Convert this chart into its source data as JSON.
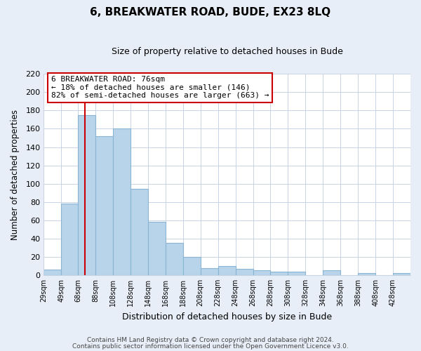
{
  "title": "6, BREAKWATER ROAD, BUDE, EX23 8LQ",
  "subtitle": "Size of property relative to detached houses in Bude",
  "xlabel": "Distribution of detached houses by size in Bude",
  "ylabel": "Number of detached properties",
  "bar_color": "#b8d4ea",
  "bar_edge_color": "#8ab4d4",
  "grid_color": "#c8d4e4",
  "plot_bg_color": "#ffffff",
  "fig_bg_color": "#e8eef8",
  "annotation_box_color": "#ffffff",
  "annotation_border_color": "#cc0000",
  "marker_line_color": "#cc0000",
  "marker_value": 76,
  "annotation_title": "6 BREAKWATER ROAD: 76sqm",
  "annotation_line1": "← 18% of detached houses are smaller (146)",
  "annotation_line2": "82% of semi-detached houses are larger (663) →",
  "bin_edges": [
    29,
    49,
    68,
    88,
    108,
    128,
    148,
    168,
    188,
    208,
    228,
    248,
    268,
    288,
    308,
    328,
    348,
    368,
    388,
    408,
    428,
    448
  ],
  "bin_labels": [
    "29sqm",
    "49sqm",
    "68sqm",
    "88sqm",
    "108sqm",
    "128sqm",
    "148sqm",
    "168sqm",
    "188sqm",
    "208sqm",
    "228sqm",
    "248sqm",
    "268sqm",
    "288sqm",
    "308sqm",
    "328sqm",
    "348sqm",
    "368sqm",
    "388sqm",
    "408sqm",
    "428sqm"
  ],
  "counts": [
    6,
    78,
    175,
    152,
    160,
    94,
    58,
    35,
    20,
    8,
    10,
    7,
    5,
    4,
    4,
    0,
    5,
    0,
    2,
    0,
    2
  ],
  "ylim": [
    0,
    220
  ],
  "yticks": [
    0,
    20,
    40,
    60,
    80,
    100,
    120,
    140,
    160,
    180,
    200,
    220
  ],
  "footer1": "Contains HM Land Registry data © Crown copyright and database right 2024.",
  "footer2": "Contains public sector information licensed under the Open Government Licence v3.0."
}
